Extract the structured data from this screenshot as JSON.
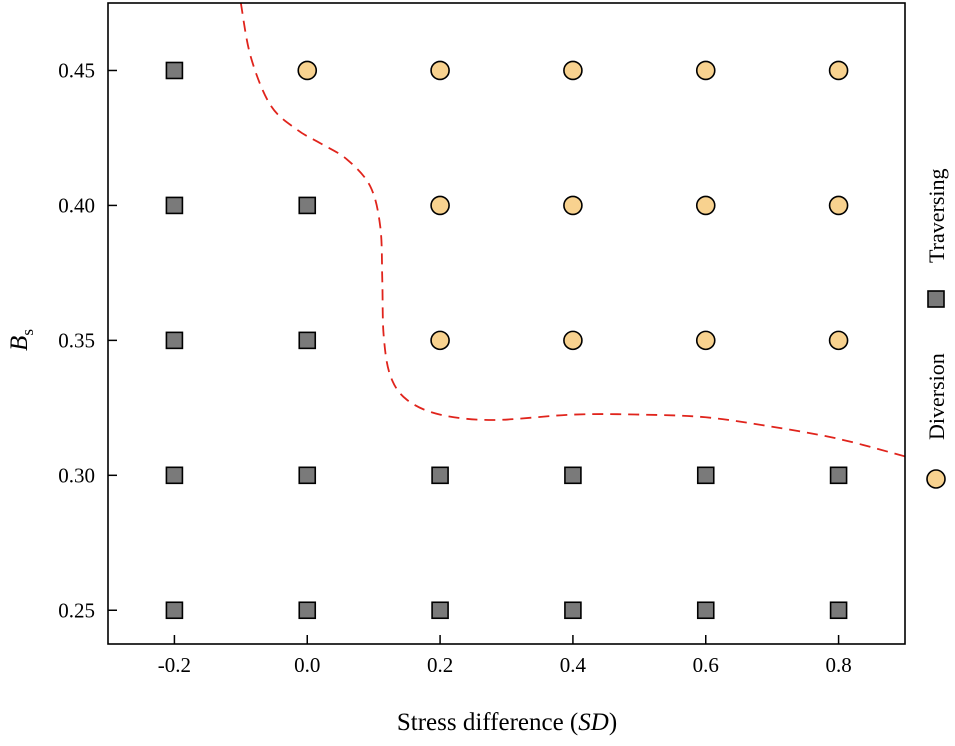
{
  "chart_data": {
    "type": "scatter",
    "title": "",
    "xlabel": "Stress difference (",
    "xlabel_italic": "SD",
    "xlabel_close": ")",
    "ylabel_main": "B",
    "ylabel_sub": "s",
    "xlim": [
      -0.3,
      0.9
    ],
    "ylim": [
      0.2375,
      0.475
    ],
    "x_ticks": [
      -0.2,
      0.0,
      0.2,
      0.4,
      0.6,
      0.8
    ],
    "x_tick_labels": [
      "-0.2",
      "0.0",
      "0.2",
      "0.4",
      "0.6",
      "0.8"
    ],
    "y_ticks": [
      0.25,
      0.3,
      0.35,
      0.4,
      0.45
    ],
    "y_tick_labels": [
      "0.25",
      "0.30",
      "0.35",
      "0.40",
      "0.45"
    ],
    "grid": false,
    "legend_position": "right (rotated vertical)",
    "series": [
      {
        "name": "Traversing",
        "marker": "square",
        "color": "#7a7a7a",
        "points": [
          [
            -0.2,
            0.25
          ],
          [
            0.0,
            0.25
          ],
          [
            0.2,
            0.25
          ],
          [
            0.4,
            0.25
          ],
          [
            0.6,
            0.25
          ],
          [
            0.8,
            0.25
          ],
          [
            -0.2,
            0.3
          ],
          [
            0.0,
            0.3
          ],
          [
            0.2,
            0.3
          ],
          [
            0.4,
            0.3
          ],
          [
            0.6,
            0.3
          ],
          [
            0.8,
            0.3
          ],
          [
            -0.2,
            0.35
          ],
          [
            0.0,
            0.35
          ],
          [
            -0.2,
            0.4
          ],
          [
            0.0,
            0.4
          ],
          [
            -0.2,
            0.45
          ]
        ]
      },
      {
        "name": "Diversion",
        "marker": "circle",
        "color": "#f8d28f",
        "points": [
          [
            0.2,
            0.35
          ],
          [
            0.4,
            0.35
          ],
          [
            0.6,
            0.35
          ],
          [
            0.8,
            0.35
          ],
          [
            0.2,
            0.4
          ],
          [
            0.4,
            0.4
          ],
          [
            0.6,
            0.4
          ],
          [
            0.8,
            0.4
          ],
          [
            0.0,
            0.45
          ],
          [
            0.2,
            0.45
          ],
          [
            0.4,
            0.45
          ],
          [
            0.6,
            0.45
          ],
          [
            0.8,
            0.45
          ]
        ]
      }
    ],
    "boundary": {
      "style": "dashed",
      "color": "#e0241c",
      "points": [
        [
          -0.1,
          0.475
        ],
        [
          -0.085,
          0.455
        ],
        [
          -0.055,
          0.437
        ],
        [
          -0.015,
          0.428
        ],
        [
          0.02,
          0.423
        ],
        [
          0.06,
          0.417
        ],
        [
          0.095,
          0.407
        ],
        [
          0.11,
          0.392
        ],
        [
          0.113,
          0.372
        ],
        [
          0.115,
          0.352
        ],
        [
          0.125,
          0.337
        ],
        [
          0.15,
          0.328
        ],
        [
          0.2,
          0.3225
        ],
        [
          0.28,
          0.3205
        ],
        [
          0.4,
          0.3225
        ],
        [
          0.5,
          0.3225
        ],
        [
          0.6,
          0.3215
        ],
        [
          0.7,
          0.318
        ],
        [
          0.8,
          0.3135
        ],
        [
          0.9,
          0.307
        ]
      ]
    }
  },
  "legend": {
    "items": [
      {
        "label": "Diversion",
        "marker": "circle"
      },
      {
        "label": "Traversing",
        "marker": "square"
      }
    ]
  }
}
